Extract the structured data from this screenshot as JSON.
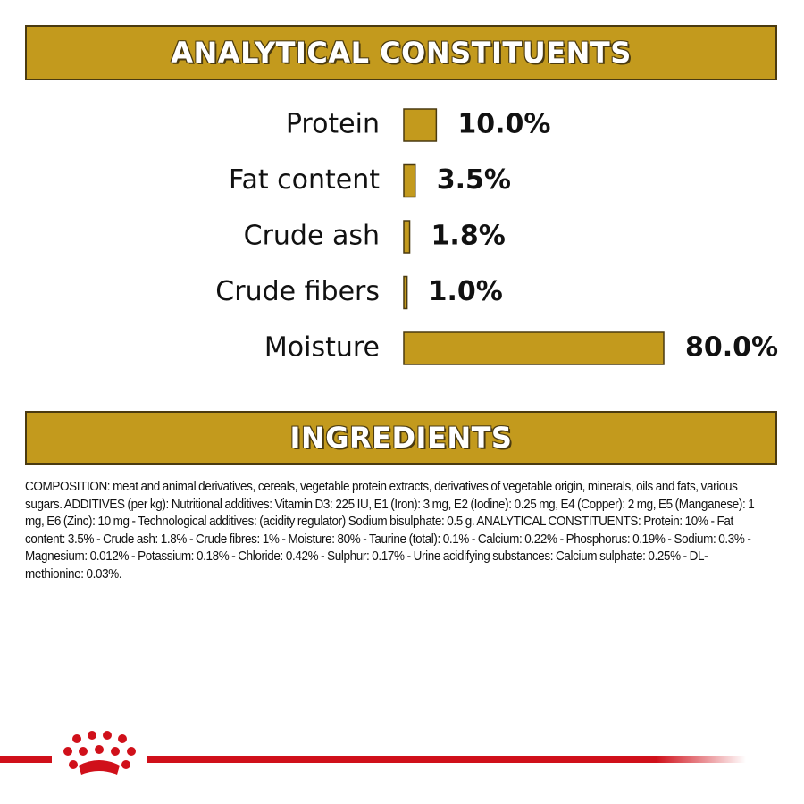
{
  "chart_data": {
    "type": "bar",
    "title": "ANALYTICAL CONSTITUENTS",
    "categories": [
      "Protein",
      "Fat content",
      "Crude ash",
      "Crude fibers",
      "Moisture"
    ],
    "values": [
      10,
      3.5,
      1.8,
      1,
      80
    ],
    "value_labels": [
      "10.0%",
      "3.5%",
      "1.8%",
      "1.0%",
      "80.0%"
    ],
    "color": "#c39a1d"
  },
  "ingredients": {
    "title": "INGREDIENTS",
    "text": "COMPOSITION: meat and animal derivatives, cereals, vegetable protein extracts, derivatives of vegetable origin, minerals, oils and fats, various sugars. ADDITIVES (per kg): Nutritional additives: Vitamin D3: 225 IU, E1 (Iron): 3 mg, E2 (Iodine): 0.25 mg, E4 (Copper): 2 mg, E5 (Manganese): 1 mg, E6 (Zinc): 10 mg - Technological additives: (acidity regulator) Sodium bisulphate: 0.5 g. ANALYTICAL CONSTITUENTS: Protein: 10% - Fat content: 3.5% - Crude ash: 1.8% - Crude fibres: 1% - Moisture: 80% - Taurine (total): 0.1% - Calcium: 0.22% - Phosphorus: 0.19% - Sodium: 0.3% - Magnesium: 0.012% - Potassium: 0.18% - Chloride: 0.42% - Sulphur: 0.17% - Urine acidifying substances: Calcium sulphate: 0.25% - DL-methionine: 0.03%."
  }
}
